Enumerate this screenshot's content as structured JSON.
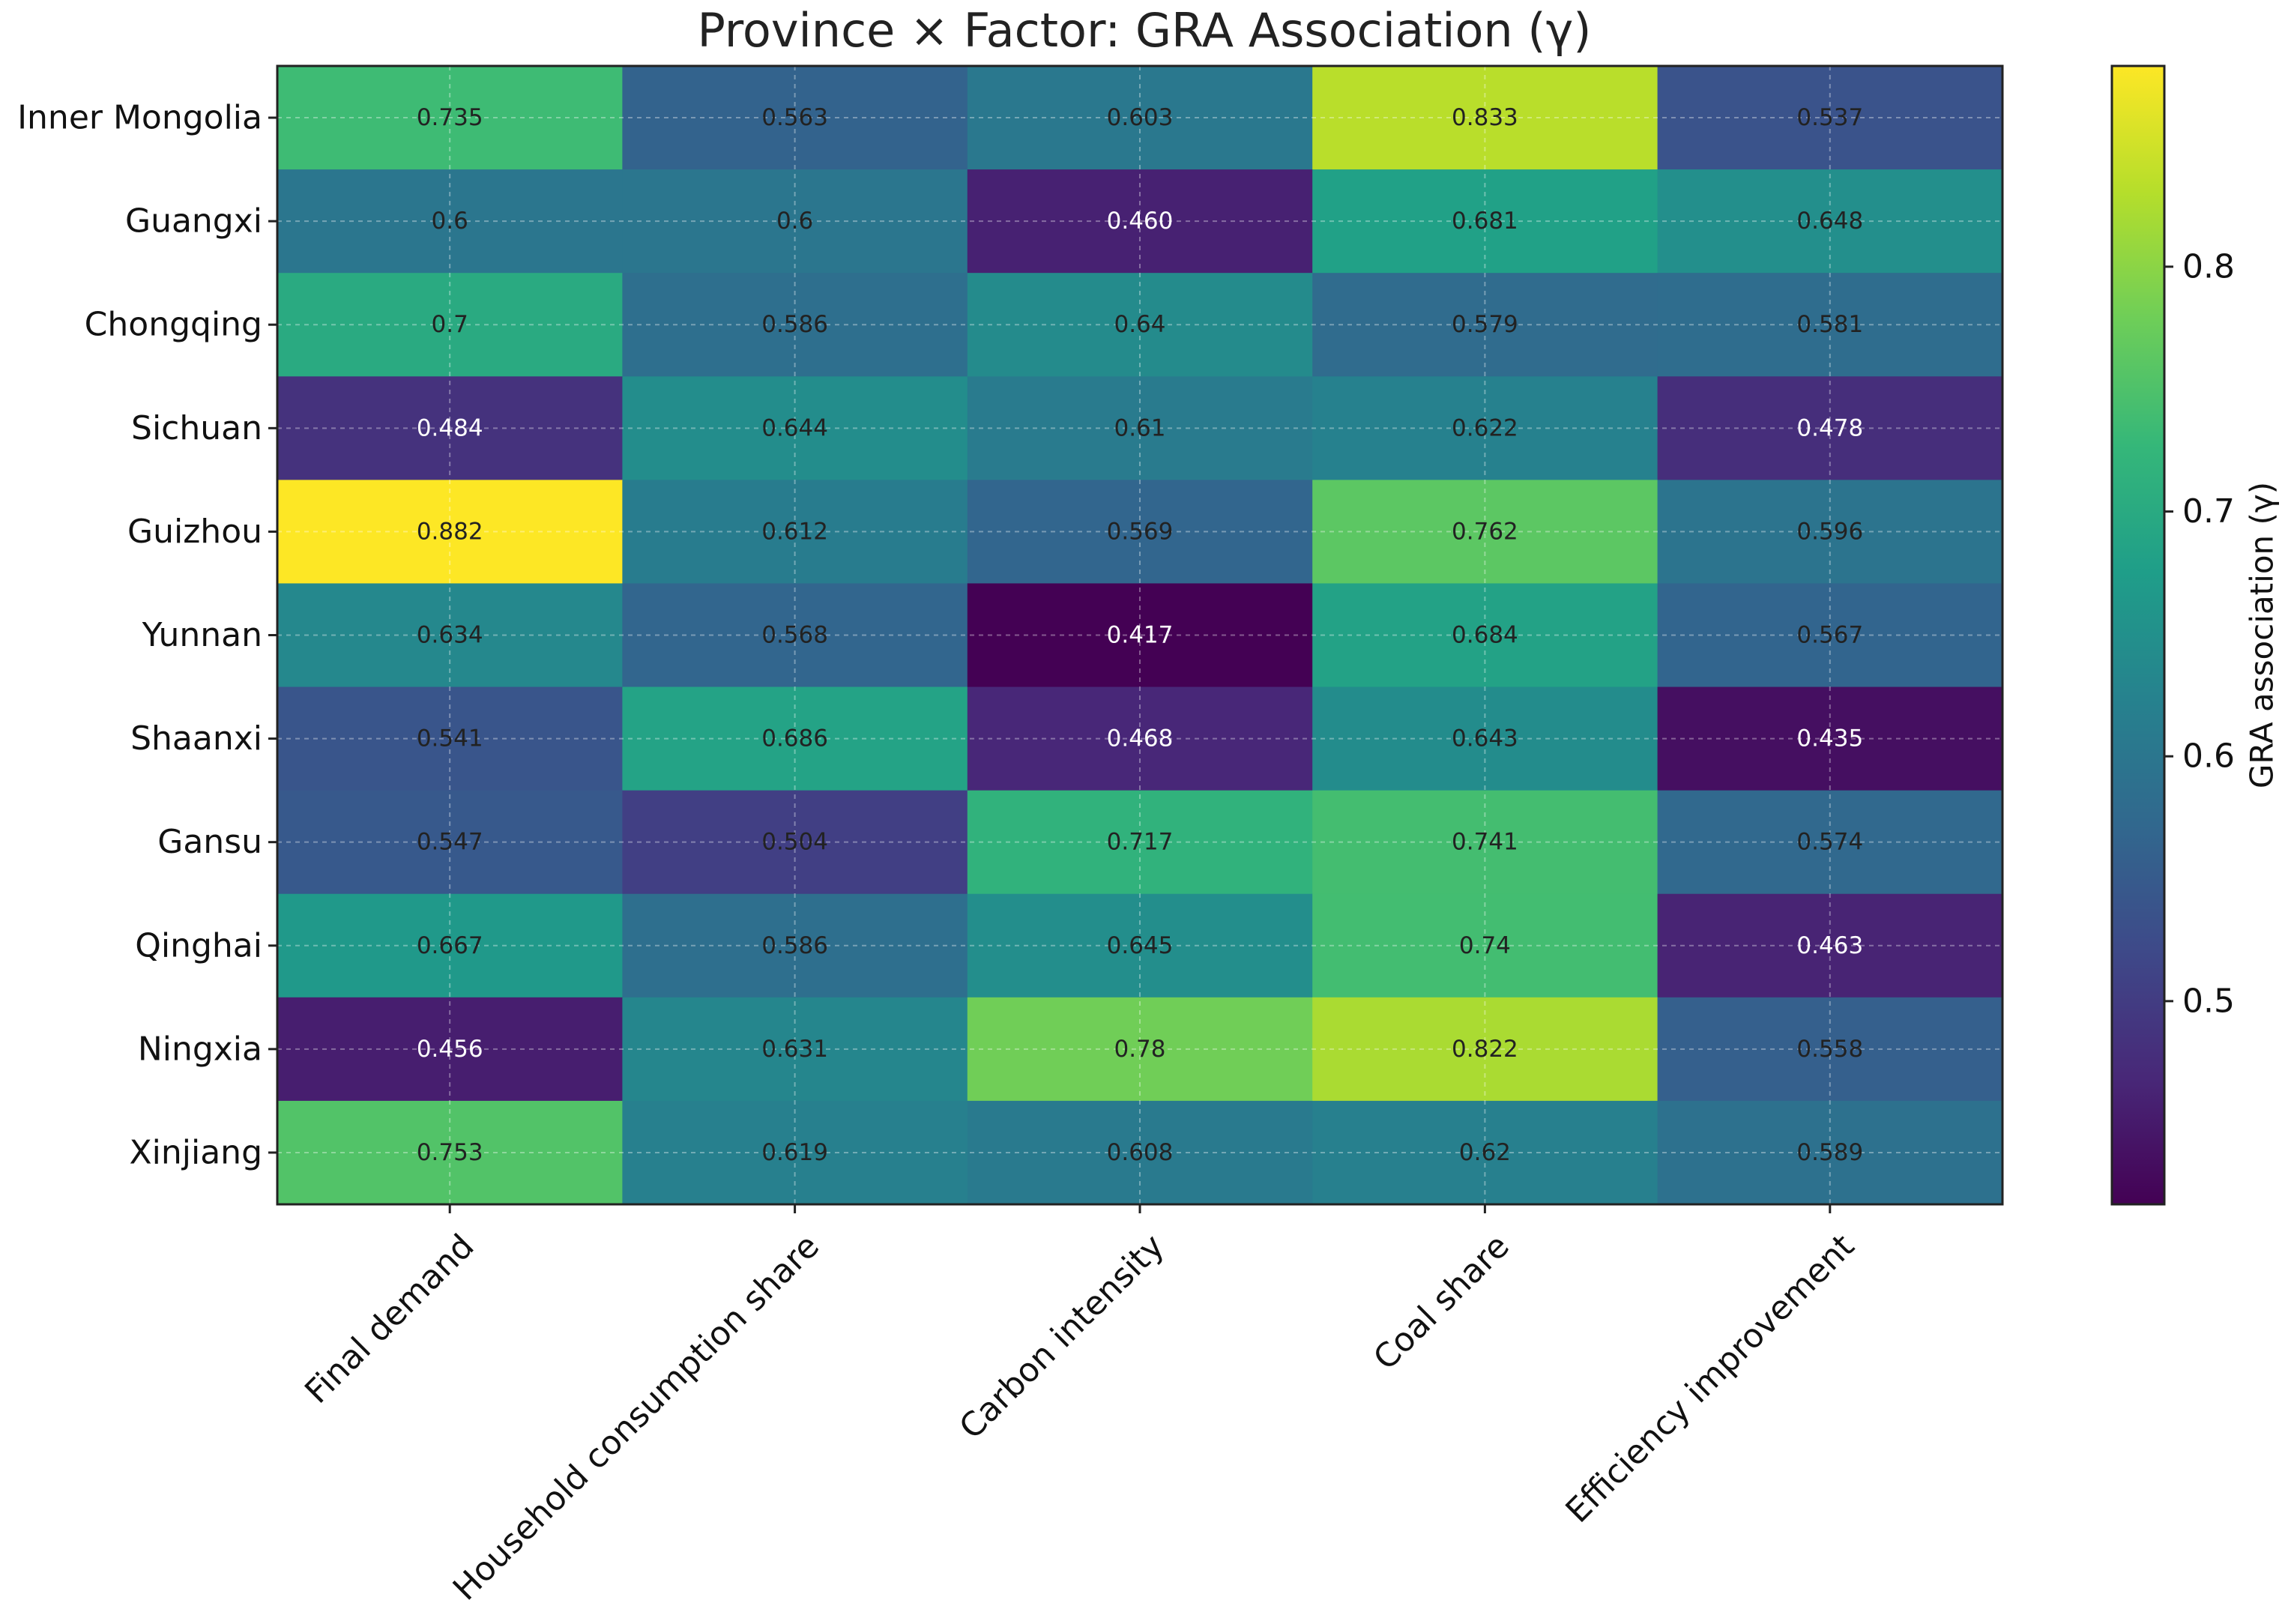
{
  "chart_data": {
    "type": "heatmap",
    "title": "Province × Factor: GRA Association (γ)",
    "rows": [
      "Inner Mongolia",
      "Guangxi",
      "Chongqing",
      "Sichuan",
      "Guizhou",
      "Yunnan",
      "Shaanxi",
      "Gansu",
      "Qinghai",
      "Ningxia",
      "Xinjiang"
    ],
    "columns": [
      "Final demand",
      "Household consumption share",
      "Carbon intensity",
      "Coal share",
      "Efficiency improvement"
    ],
    "values": [
      [
        0.735,
        0.563,
        0.603,
        0.833,
        0.537
      ],
      [
        0.6,
        0.6,
        0.46,
        0.681,
        0.648
      ],
      [
        0.7,
        0.586,
        0.64,
        0.579,
        0.581
      ],
      [
        0.484,
        0.644,
        0.61,
        0.622,
        0.478
      ],
      [
        0.882,
        0.612,
        0.569,
        0.762,
        0.596
      ],
      [
        0.634,
        0.568,
        0.417,
        0.684,
        0.567
      ],
      [
        0.541,
        0.686,
        0.468,
        0.643,
        0.435
      ],
      [
        0.547,
        0.504,
        0.717,
        0.741,
        0.574
      ],
      [
        0.667,
        0.586,
        0.645,
        0.74,
        0.463
      ],
      [
        0.456,
        0.631,
        0.78,
        0.822,
        0.558
      ],
      [
        0.753,
        0.619,
        0.608,
        0.62,
        0.589
      ]
    ],
    "value_labels": [
      [
        "0.735",
        "0.563",
        "0.603",
        "0.833",
        "0.537"
      ],
      [
        "0.6",
        "0.6",
        "0.460",
        "0.681",
        "0.648"
      ],
      [
        "0.7",
        "0.586",
        "0.64",
        "0.579",
        "0.581"
      ],
      [
        "0.484",
        "0.644",
        "0.61",
        "0.622",
        "0.478"
      ],
      [
        "0.882",
        "0.612",
        "0.569",
        "0.762",
        "0.596"
      ],
      [
        "0.634",
        "0.568",
        "0.417",
        "0.684",
        "0.567"
      ],
      [
        "0.541",
        "0.686",
        "0.468",
        "0.643",
        "0.435"
      ],
      [
        "0.547",
        "0.504",
        "0.717",
        "0.741",
        "0.574"
      ],
      [
        "0.667",
        "0.586",
        "0.645",
        "0.74",
        "0.463"
      ],
      [
        "0.456",
        "0.631",
        "0.78",
        "0.822",
        "0.558"
      ],
      [
        "0.753",
        "0.619",
        "0.608",
        "0.62",
        "0.589"
      ]
    ],
    "colorbar": {
      "label": "GRA association (γ)",
      "range": [
        0.417,
        0.882
      ],
      "ticks": [
        0.5,
        0.6,
        0.7,
        0.8
      ],
      "tick_labels": [
        "0.5",
        "0.6",
        "0.7",
        "0.8"
      ],
      "colormap": "viridis",
      "colormap_stops": [
        "#440154",
        "#482878",
        "#3e4989",
        "#31688e",
        "#26828e",
        "#1f9e89",
        "#35b779",
        "#6ece58",
        "#b5de2b",
        "#fde725"
      ]
    },
    "grid": true,
    "legend": "right colorbar"
  }
}
